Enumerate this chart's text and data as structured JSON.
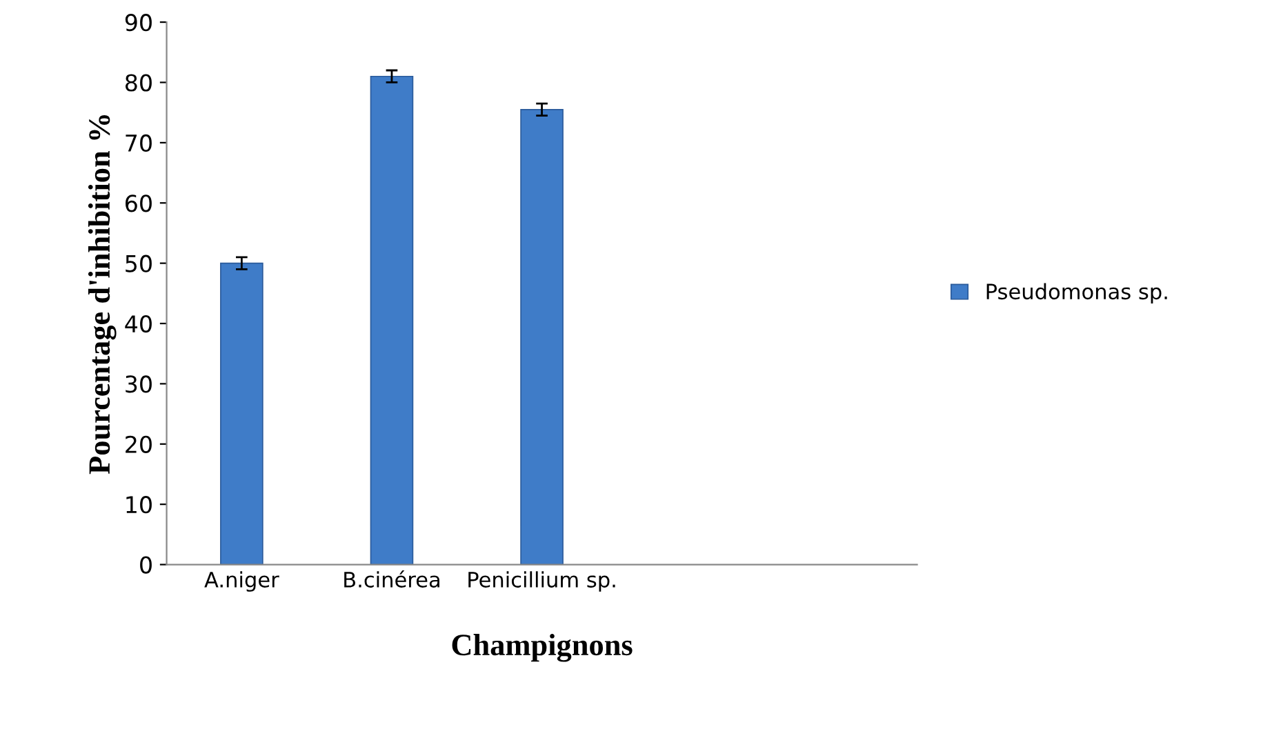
{
  "chart_data": {
    "type": "bar",
    "xlabel": "Champignons",
    "ylabel": "Pourcentage d'inhibition %",
    "categories": [
      "A.niger",
      "B.cinérea",
      "Penicillium sp.",
      null,
      null
    ],
    "series": [
      {
        "name": "Pseudomonas sp.",
        "color": "#3f7cc8",
        "values": [
          50,
          81,
          75.5,
          null,
          null
        ],
        "errors": [
          1,
          1,
          1,
          null,
          null
        ]
      }
    ],
    "ylim": [
      0,
      90
    ],
    "yticks": [
      0,
      10,
      20,
      30,
      40,
      50,
      60,
      70,
      80,
      90
    ],
    "grid": false,
    "legend": "right"
  }
}
